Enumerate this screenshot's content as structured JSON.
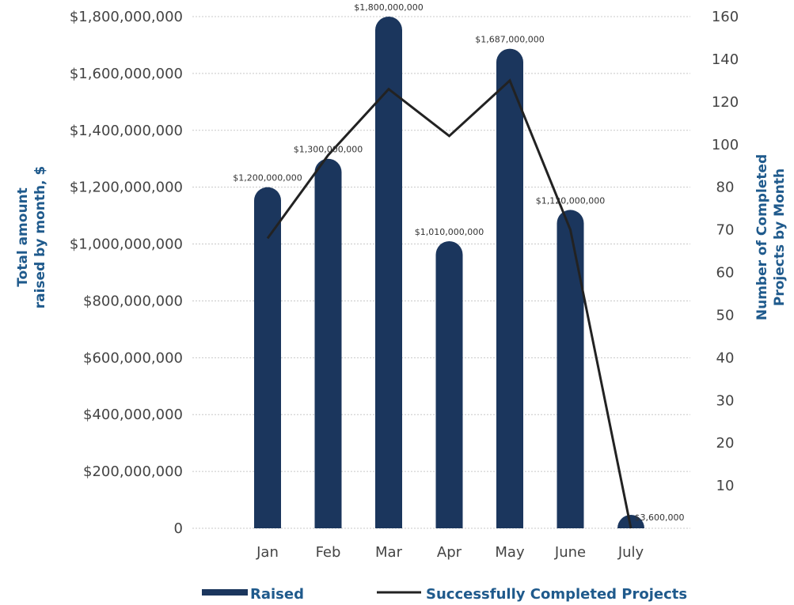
{
  "chart_data": {
    "type": "bar",
    "categories": [
      "Jan",
      "Feb",
      "Mar",
      "Apr",
      "May",
      "June",
      "July"
    ],
    "series": [
      {
        "name": "Raised",
        "type": "bar",
        "axis": "left",
        "values": [
          1200000000,
          1300000000,
          1800000000,
          1010000000,
          1687000000,
          1120000000,
          3600000
        ],
        "labels": [
          "$1,200,000,000",
          "$1,300,000,000",
          "$1,800,000,000",
          "$1,010,000,000",
          "$1,687,000,000",
          "$1,120,000,000",
          "$3,600,000"
        ]
      },
      {
        "name": "Successfully Completed Projects",
        "type": "line",
        "axis": "right",
        "values": [
          68,
          95,
          126,
          104,
          130,
          70,
          0
        ]
      }
    ],
    "left_axis": {
      "title_lines": [
        "Total amount",
        "raised by month, $"
      ],
      "ylim": [
        0,
        1800000000
      ],
      "ticks": [
        {
          "value": 0,
          "label": "0"
        },
        {
          "value": 200000000,
          "label": "$200,000,000"
        },
        {
          "value": 400000000,
          "label": "$400,000,000"
        },
        {
          "value": 600000000,
          "label": "$600,000,000"
        },
        {
          "value": 800000000,
          "label": "$800,000,000"
        },
        {
          "value": 1000000000,
          "label": "$1,000,000,000"
        },
        {
          "value": 1200000000,
          "label": "$1,200,000,000"
        },
        {
          "value": 1400000000,
          "label": "$1,400,000,000"
        },
        {
          "value": 1600000000,
          "label": "$1,600,000,000"
        },
        {
          "value": 1800000000,
          "label": "$1,800,000,000"
        }
      ]
    },
    "right_axis": {
      "title_lines": [
        "Number of Completed",
        "Projects by Month"
      ],
      "ticks": [
        {
          "value": 10,
          "label": "10"
        },
        {
          "value": 20,
          "label": "20"
        },
        {
          "value": 30,
          "label": "30"
        },
        {
          "value": 40,
          "label": "40"
        },
        {
          "value": 50,
          "label": "50"
        },
        {
          "value": 60,
          "label": "60"
        },
        {
          "value": 70,
          "label": "70"
        },
        {
          "value": 80,
          "label": "80"
        },
        {
          "value": 100,
          "label": "100"
        },
        {
          "value": 120,
          "label": "120"
        },
        {
          "value": 140,
          "label": "140"
        },
        {
          "value": 160,
          "label": "160"
        }
      ]
    },
    "grid": true,
    "legend_position": "bottom-center",
    "colors": {
      "bar": "#1b365d",
      "line": "#222222",
      "axis_title": "#1f5a8c"
    }
  }
}
